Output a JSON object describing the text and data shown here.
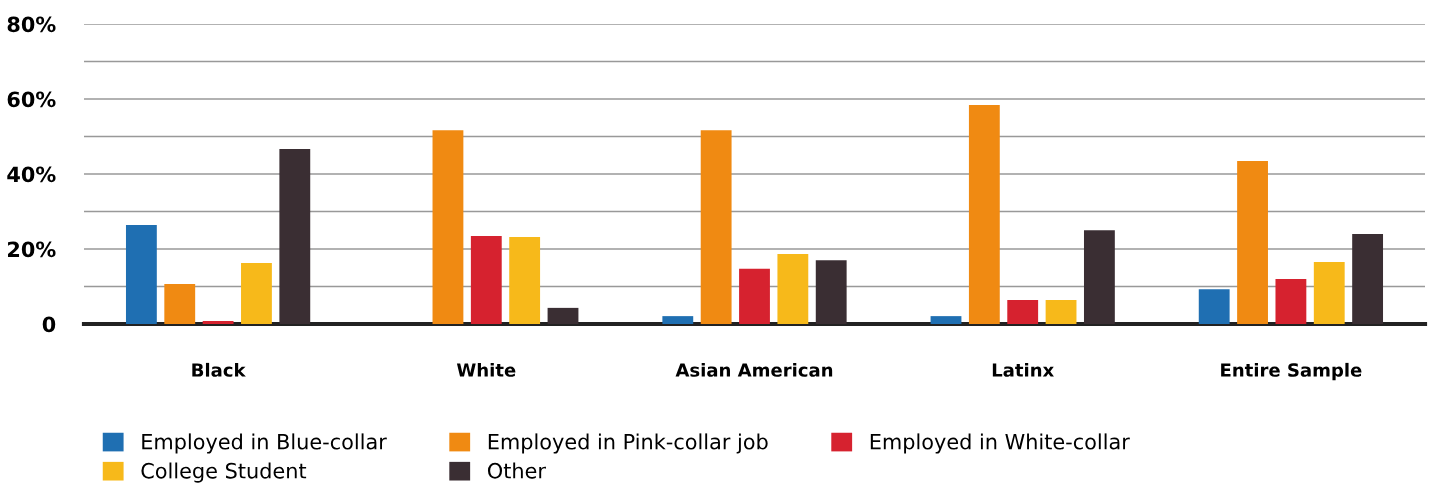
{
  "chart_data": {
    "type": "bar",
    "categories": [
      "Black",
      "White",
      "Asian American",
      "Latinx",
      "Entire Sample"
    ],
    "series": [
      {
        "name": "Employed in Blue-collar",
        "color": "#1f6fb2",
        "values": [
          26.4,
          0,
          2.1,
          2.1,
          9.3
        ]
      },
      {
        "name": "Employed in Pink-collar job",
        "color": "#f08a12",
        "values": [
          10.7,
          51.7,
          51.7,
          58.4,
          43.5
        ]
      },
      {
        "name": "Employed in White-collar",
        "color": "#d6222f",
        "values": [
          0.8,
          23.5,
          14.7,
          6.4,
          12
        ]
      },
      {
        "name": "College Student",
        "color": "#f7b91a",
        "values": [
          16.3,
          23.2,
          18.7,
          6.4,
          16.5
        ]
      },
      {
        "name": "Other",
        "color": "#3a2e33",
        "values": [
          46.7,
          4.3,
          17,
          25,
          24
        ]
      }
    ],
    "ylim": [
      0,
      80
    ],
    "yticks": [
      {
        "value": 0,
        "label": "0"
      },
      {
        "value": 10,
        "label": null
      },
      {
        "value": 20,
        "label": "20%"
      },
      {
        "value": 30,
        "label": null
      },
      {
        "value": 40,
        "label": "40%"
      },
      {
        "value": 50,
        "label": null
      },
      {
        "value": 60,
        "label": "60%"
      },
      {
        "value": 70,
        "label": null
      },
      {
        "value": 80,
        "label": "80%"
      }
    ],
    "grid": "y",
    "legend": "bottom"
  }
}
